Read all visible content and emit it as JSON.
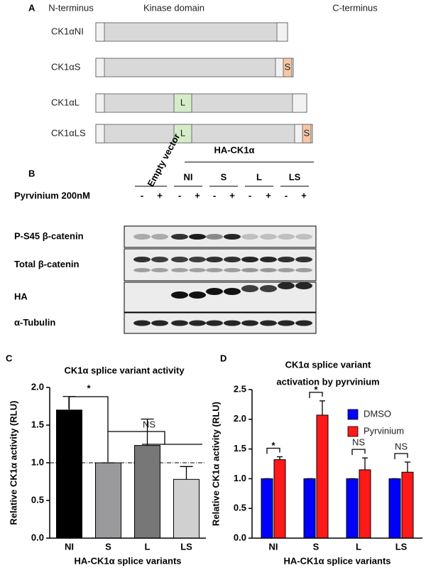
{
  "panel_a": {
    "label": "A",
    "headers": [
      "N-terminus",
      "Kinase domain",
      "C-terminus"
    ],
    "constructs": [
      {
        "name": "CK1αNI",
        "domains": []
      },
      {
        "name": "CK1αS",
        "domains": [
          "S"
        ]
      },
      {
        "name": "CK1αL",
        "domains": [
          "L"
        ]
      },
      {
        "name": "CK1αLS",
        "domains": [
          "L",
          "S"
        ]
      }
    ]
  },
  "panel_b": {
    "label": "B",
    "empty_vector": "Empty vector",
    "construct": "HA-CK1α",
    "groups": [
      "NI",
      "S",
      "L",
      "LS"
    ],
    "treatment": "Pyrvinium 200nM",
    "signs": [
      "-",
      "+"
    ],
    "rows": [
      "P-S45 β-catenin",
      "Total β-catenin",
      "HA",
      "α-Tubulin"
    ]
  },
  "chart_data": [
    {
      "type": "bar",
      "panel_label": "C",
      "title": "CK1α splice variant activity",
      "x_label": "HA-CK1α splice variants",
      "y_label": "Relative CK1α activity (RLU)",
      "categories": [
        "NI",
        "S",
        "L",
        "LS"
      ],
      "values": [
        1.7,
        1.0,
        1.23,
        0.78
      ],
      "errors": [
        0.18,
        0,
        0.35,
        0.17
      ],
      "colors": [
        "#000000",
        "#9a9a9d",
        "#777777",
        "#d0d0d0"
      ],
      "reference_line": 1.0,
      "ylim": [
        0,
        2.0
      ],
      "yticks": [
        {
          "value": 0,
          "label": "0.0"
        },
        0.5,
        {
          "value": 1.0,
          "label": "1.0"
        },
        1.5,
        {
          "value": 2.0,
          "label": "2.0"
        }
      ],
      "annotations": [
        "*",
        "NS"
      ]
    },
    {
      "type": "grouped_bar",
      "panel_label": "D",
      "title": [
        "CK1α splice variant",
        "activation by pyrvinium"
      ],
      "x_label": "HA-CK1α splice variants",
      "y_label": "Relative CK1α activity (RLU)",
      "categories": [
        "NI",
        "S",
        "L",
        "LS"
      ],
      "series": [
        {
          "name": "DMSO",
          "color": "#0000ff",
          "values": [
            1.0,
            1.0,
            1.0,
            1.0
          ],
          "errors": [
            0,
            0,
            0,
            0
          ]
        },
        {
          "name": "Pyrvinium",
          "color": "#ff1a1a",
          "values": [
            1.32,
            2.07,
            1.15,
            1.11
          ],
          "errors": [
            0.05,
            0.24,
            0.2,
            0.17
          ]
        }
      ],
      "legend": "upper right",
      "ylim": [
        0,
        2.5
      ],
      "yticks": [
        {
          "value": 0,
          "label": "0.0"
        },
        0.5,
        {
          "value": 1.0,
          "label": "1.0"
        },
        1.5,
        {
          "value": 2.0,
          "label": "2.0"
        },
        2.5
      ],
      "annotations": [
        "*",
        "*",
        "NS",
        "NS"
      ]
    }
  ]
}
